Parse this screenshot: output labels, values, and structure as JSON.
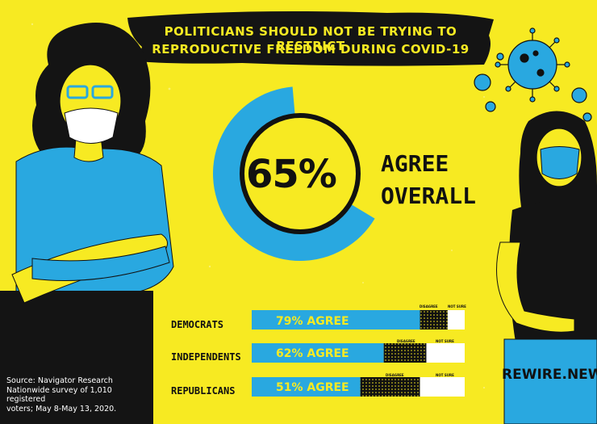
{
  "title": {
    "line1": "POLITICIANS SHOULD NOT BE TRYING TO RESTRICT",
    "line2": "REPRODUCTIVE FREEDOM DURING COVID-19"
  },
  "headline": {
    "value": "65%",
    "label_line1": "AGREE",
    "label_line2": "OVERALL"
  },
  "chart_data": {
    "type": "bar",
    "stacked": true,
    "orientation": "horizontal",
    "overall": {
      "agree": 65
    },
    "categories": [
      "DEMOCRATS",
      "INDEPENDENTS",
      "REPUBLICANS"
    ],
    "series": [
      {
        "name": "AGREE",
        "values": [
          79,
          62,
          51
        ],
        "color": "#29a8e0"
      },
      {
        "name": "DISAGREE",
        "values": [
          13,
          20,
          28
        ],
        "color": "#111111"
      },
      {
        "name": "NOT SURE",
        "values": [
          8,
          18,
          21
        ],
        "color": "#ffffff"
      }
    ],
    "bar_labels": [
      "79% AGREE",
      "62% AGREE",
      "51% AGREE"
    ],
    "segment_labels": {
      "disagree": "DISAGREE",
      "not_sure": "NOT SURE"
    }
  },
  "source": {
    "line1": "Source: Navigator Research",
    "line2": "Nationwide survey of 1,010 registered",
    "line3": "voters; May 8-May 13, 2020."
  },
  "brand": "REWIRE.NEWS",
  "colors": {
    "background": "#f7ea22",
    "blue": "#29a8e0",
    "black": "#111111"
  }
}
